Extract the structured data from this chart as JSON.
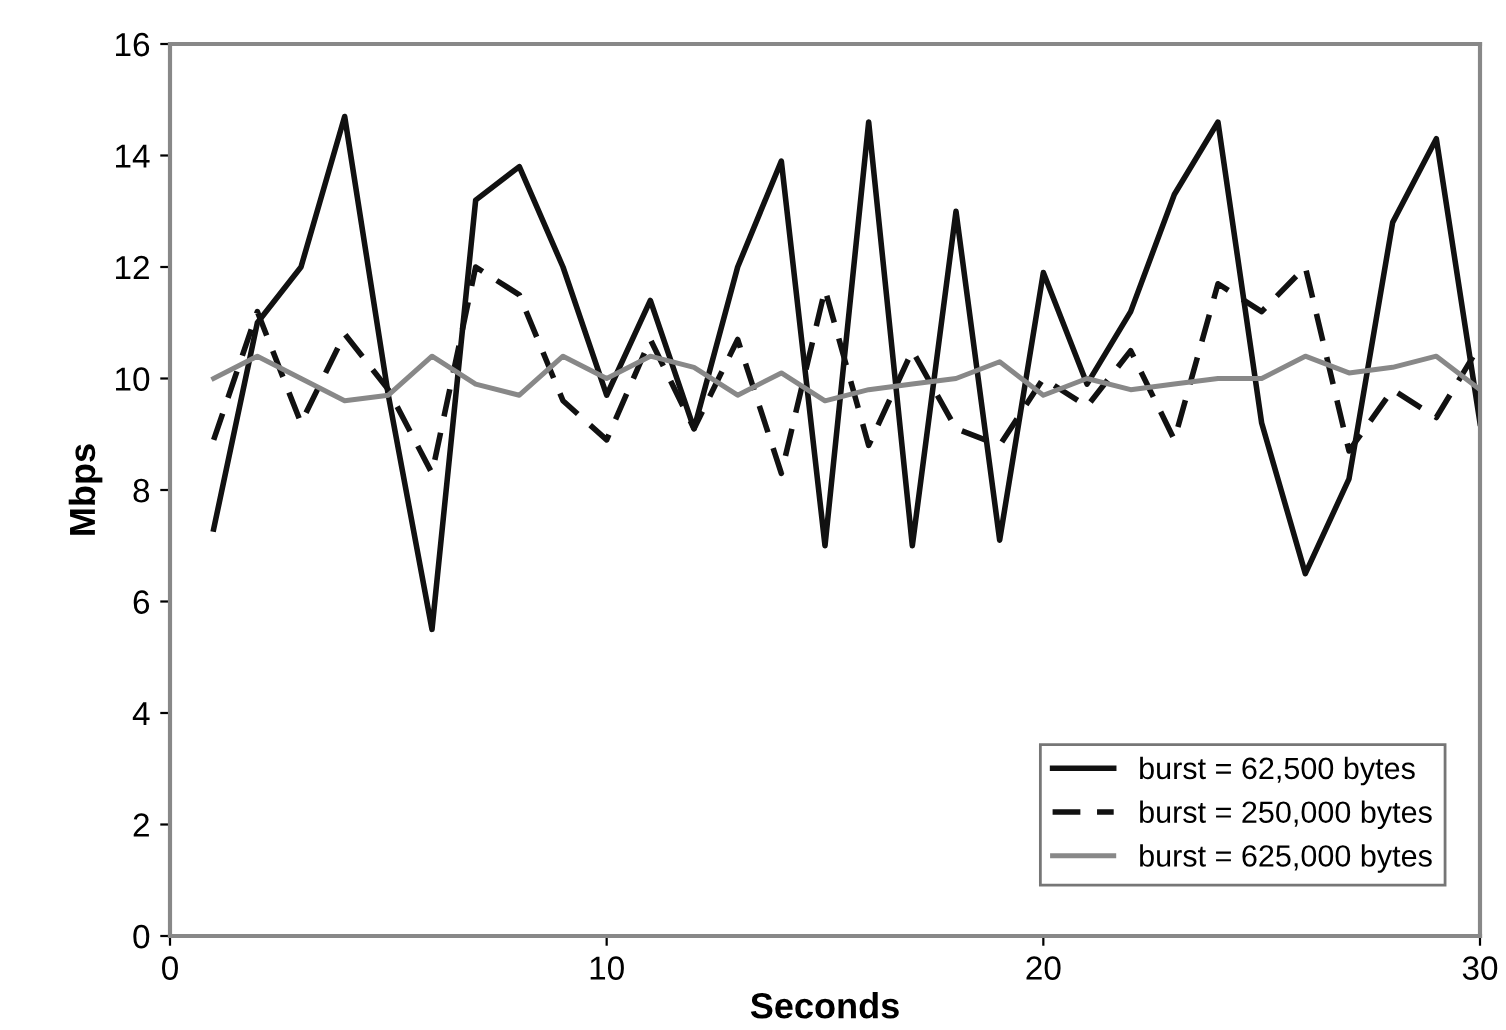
{
  "chart_data": {
    "type": "line",
    "xlabel": "Seconds",
    "ylabel": "Mbps",
    "x": [
      1,
      2,
      3,
      4,
      5,
      6,
      7,
      8,
      9,
      10,
      11,
      12,
      13,
      14,
      15,
      16,
      17,
      18,
      19,
      20,
      21,
      22,
      23,
      24,
      25,
      26,
      27,
      28,
      29,
      30
    ],
    "series": [
      {
        "name": "burst = 62,500 bytes",
        "color": "#111111",
        "line_style": "solid",
        "values": [
          7.3,
          11,
          12,
          14.7,
          9.7,
          5.5,
          13.2,
          13.8,
          12,
          9.7,
          11.4,
          9.1,
          12,
          13.9,
          7,
          14.6,
          7,
          13,
          7.1,
          11.9,
          9.9,
          11.2,
          13.3,
          14.6,
          9.2,
          6.5,
          8.2,
          12.8,
          14.3,
          9.2
        ]
      },
      {
        "name": "burst = 250,000 bytes",
        "color": "#111111",
        "line_style": "dashed",
        "values": [
          8.9,
          11.2,
          9.2,
          10.8,
          9.8,
          8.3,
          12,
          11.5,
          9.6,
          8.9,
          10.7,
          9.1,
          10.7,
          8.3,
          11.6,
          8.8,
          10.5,
          9.1,
          8.8,
          10,
          9.5,
          10.5,
          8.9,
          11.7,
          11.2,
          12,
          8.7,
          9.8,
          9.3,
          10.6
        ]
      },
      {
        "name": "burst = 625,000 bytes",
        "color": "#888888",
        "line_style": "solid",
        "values": [
          10,
          10.4,
          10,
          9.6,
          9.7,
          10.4,
          9.9,
          9.7,
          10.4,
          10,
          10.4,
          10.2,
          9.7,
          10.1,
          9.6,
          9.8,
          9.9,
          10,
          10.3,
          9.7,
          10,
          9.8,
          9.9,
          10,
          10,
          10.4,
          10.1,
          10.2,
          10.4,
          9.8
        ]
      }
    ],
    "xlim": [
      0,
      30
    ],
    "xticks": [
      0,
      10,
      20,
      30
    ],
    "ylim": [
      0,
      16
    ],
    "yticks": [
      0,
      2,
      4,
      6,
      8,
      10,
      12,
      14,
      16
    ],
    "grid": false,
    "legend": "bottom right",
    "marker": "none"
  }
}
